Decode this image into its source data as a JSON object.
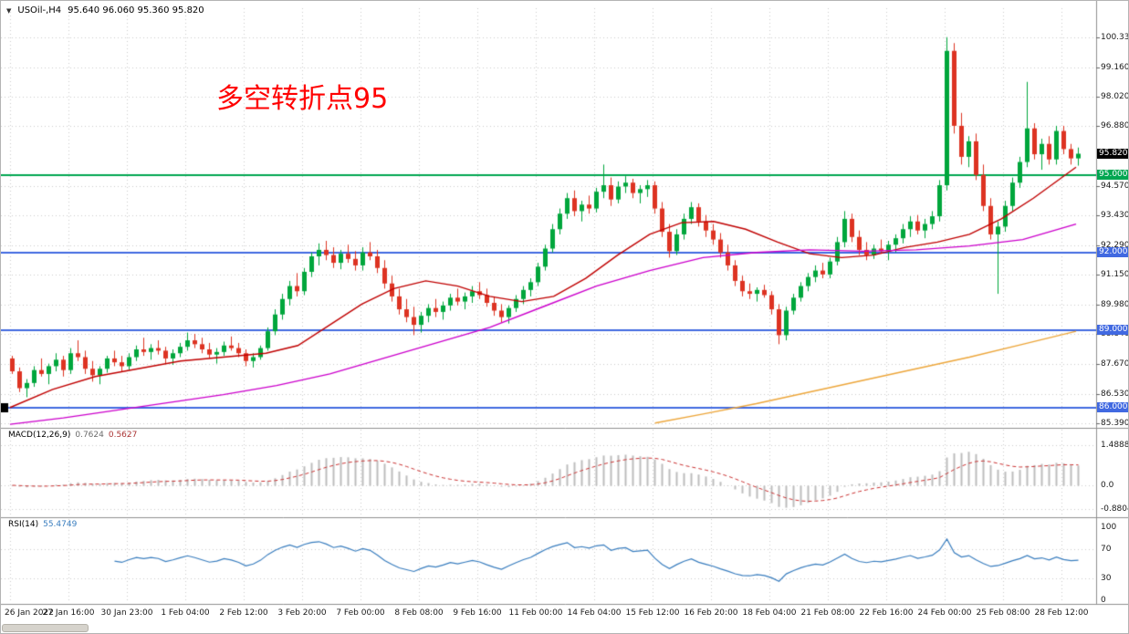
{
  "window": {
    "dropdown_icon": "▼",
    "symbol_period": "USOil-,H4",
    "ohlc": "95.640 96.060 95.360 95.820"
  },
  "annotation": {
    "text": "多空转折点95",
    "color": "#ff0000"
  },
  "chart_data": {
    "type": "candlestick",
    "symbol": "USOil-",
    "timeframe": "H4",
    "ylim": [
      85.25,
      101.45
    ],
    "price_ticks": [
      {
        "price": 100.33,
        "label": "100.330"
      },
      {
        "price": 99.16,
        "label": "99.160"
      },
      {
        "price": 98.02,
        "label": "98.020"
      },
      {
        "price": 96.88,
        "label": "96.880"
      },
      {
        "price": 94.57,
        "label": "94.570"
      },
      {
        "price": 93.43,
        "label": "93.430"
      },
      {
        "price": 92.29,
        "label": "92.290"
      },
      {
        "price": 91.15,
        "label": "91.150"
      },
      {
        "price": 89.98,
        "label": "89.980"
      },
      {
        "price": 88.84,
        "label": "88.840"
      },
      {
        "price": 87.67,
        "label": "87.670"
      },
      {
        "price": 86.53,
        "label": "86.530"
      },
      {
        "price": 85.39,
        "label": "85.390"
      }
    ],
    "x_labels": [
      "26 Jan 2022",
      "27 Jan 16:00",
      "30 Jan 23:00",
      "1 Feb 04:00",
      "2 Feb 12:00",
      "3 Feb 20:00",
      "7 Feb 00:00",
      "8 Feb 08:00",
      "9 Feb 16:00",
      "11 Feb 00:00",
      "14 Feb 04:00",
      "15 Feb 12:00",
      "16 Feb 20:00",
      "18 Feb 04:00",
      "21 Feb 08:00",
      "22 Feb 16:00",
      "24 Feb 00:00",
      "25 Feb 08:00",
      "28 Feb 12:00"
    ],
    "candles": [
      [
        87.9,
        88.0,
        87.3,
        87.4
      ],
      [
        87.4,
        87.55,
        86.6,
        86.75
      ],
      [
        86.75,
        87.1,
        86.4,
        86.95
      ],
      [
        86.95,
        87.6,
        86.8,
        87.45
      ],
      [
        87.45,
        87.9,
        87.2,
        87.3
      ],
      [
        87.3,
        87.7,
        86.9,
        87.6
      ],
      [
        87.6,
        88.1,
        87.4,
        87.85
      ],
      [
        87.85,
        88.0,
        87.2,
        87.45
      ],
      [
        87.45,
        88.3,
        87.3,
        88.1
      ],
      [
        88.1,
        88.6,
        87.8,
        87.95
      ],
      [
        87.95,
        88.2,
        87.3,
        87.5
      ],
      [
        87.5,
        87.8,
        87.0,
        87.25
      ],
      [
        87.25,
        87.6,
        86.9,
        87.5
      ],
      [
        87.5,
        88.0,
        87.35,
        87.9
      ],
      [
        87.9,
        88.2,
        87.6,
        87.75
      ],
      [
        87.75,
        88.0,
        87.4,
        87.6
      ],
      [
        87.6,
        88.1,
        87.45,
        87.95
      ],
      [
        87.95,
        88.4,
        87.8,
        88.25
      ],
      [
        88.25,
        88.7,
        88.0,
        88.15
      ],
      [
        88.15,
        88.45,
        87.85,
        88.3
      ],
      [
        88.3,
        88.6,
        88.05,
        88.2
      ],
      [
        88.2,
        88.35,
        87.7,
        87.9
      ],
      [
        87.9,
        88.25,
        87.65,
        88.1
      ],
      [
        88.1,
        88.5,
        87.95,
        88.35
      ],
      [
        88.35,
        88.9,
        88.2,
        88.6
      ],
      [
        88.6,
        88.85,
        88.3,
        88.45
      ],
      [
        88.45,
        88.7,
        88.1,
        88.25
      ],
      [
        88.25,
        88.5,
        87.9,
        88.05
      ],
      [
        88.05,
        88.3,
        87.7,
        88.15
      ],
      [
        88.15,
        88.55,
        88.0,
        88.4
      ],
      [
        88.4,
        88.75,
        88.2,
        88.3
      ],
      [
        88.3,
        88.5,
        87.95,
        88.1
      ],
      [
        88.1,
        88.25,
        87.6,
        87.8
      ],
      [
        87.8,
        88.1,
        87.55,
        87.95
      ],
      [
        87.95,
        88.4,
        87.85,
        88.3
      ],
      [
        88.3,
        89.1,
        88.2,
        88.95
      ],
      [
        88.95,
        89.8,
        88.8,
        89.6
      ],
      [
        89.6,
        90.4,
        89.4,
        90.2
      ],
      [
        90.2,
        90.9,
        89.95,
        90.7
      ],
      [
        90.7,
        91.2,
        90.3,
        90.5
      ],
      [
        90.5,
        91.4,
        90.35,
        91.25
      ],
      [
        91.25,
        92.0,
        91.05,
        91.85
      ],
      [
        91.85,
        92.35,
        91.5,
        92.1
      ],
      [
        92.1,
        92.45,
        91.7,
        91.9
      ],
      [
        91.9,
        92.2,
        91.4,
        91.6
      ],
      [
        91.6,
        92.1,
        91.35,
        91.95
      ],
      [
        91.95,
        92.3,
        91.6,
        91.75
      ],
      [
        91.75,
        92.05,
        91.3,
        91.5
      ],
      [
        91.5,
        92.2,
        91.3,
        92.0
      ],
      [
        92.0,
        92.4,
        91.7,
        91.85
      ],
      [
        91.85,
        92.1,
        91.2,
        91.4
      ],
      [
        91.4,
        91.7,
        90.6,
        90.8
      ],
      [
        90.8,
        91.1,
        90.1,
        90.3
      ],
      [
        90.3,
        90.6,
        89.6,
        89.8
      ],
      [
        89.8,
        90.2,
        89.3,
        89.5
      ],
      [
        89.5,
        89.9,
        88.8,
        89.2
      ],
      [
        89.2,
        89.7,
        88.9,
        89.55
      ],
      [
        89.55,
        90.0,
        89.3,
        89.85
      ],
      [
        89.85,
        90.2,
        89.5,
        89.7
      ],
      [
        89.7,
        90.1,
        89.4,
        89.95
      ],
      [
        89.95,
        90.4,
        89.75,
        90.25
      ],
      [
        90.25,
        90.6,
        89.95,
        90.1
      ],
      [
        90.1,
        90.45,
        89.8,
        90.3
      ],
      [
        90.3,
        90.7,
        90.05,
        90.5
      ],
      [
        90.5,
        90.85,
        90.2,
        90.35
      ],
      [
        90.35,
        90.6,
        89.9,
        90.05
      ],
      [
        90.05,
        90.3,
        89.55,
        89.75
      ],
      [
        89.75,
        90.0,
        89.3,
        89.5
      ],
      [
        89.5,
        89.95,
        89.25,
        89.85
      ],
      [
        89.85,
        90.35,
        89.7,
        90.2
      ],
      [
        90.2,
        90.7,
        90.0,
        90.55
      ],
      [
        90.55,
        91.0,
        90.3,
        90.85
      ],
      [
        90.85,
        91.6,
        90.7,
        91.45
      ],
      [
        91.45,
        92.3,
        91.3,
        92.15
      ],
      [
        92.15,
        93.1,
        92.0,
        92.9
      ],
      [
        92.9,
        93.7,
        92.7,
        93.5
      ],
      [
        93.5,
        94.3,
        93.3,
        94.1
      ],
      [
        94.1,
        94.4,
        93.4,
        93.6
      ],
      [
        93.6,
        94.0,
        93.2,
        93.85
      ],
      [
        93.85,
        94.2,
        93.5,
        93.7
      ],
      [
        93.7,
        94.5,
        93.55,
        94.35
      ],
      [
        94.35,
        95.4,
        94.1,
        94.6
      ],
      [
        94.6,
        94.9,
        93.8,
        94.05
      ],
      [
        94.05,
        94.75,
        93.9,
        94.55
      ],
      [
        94.55,
        94.95,
        94.3,
        94.7
      ],
      [
        94.7,
        94.85,
        94.1,
        94.3
      ],
      [
        94.3,
        94.6,
        93.9,
        94.45
      ],
      [
        94.45,
        94.8,
        94.15,
        94.6
      ],
      [
        94.6,
        94.75,
        93.5,
        93.7
      ],
      [
        93.7,
        93.95,
        92.6,
        92.8
      ],
      [
        92.8,
        93.1,
        91.8,
        92.05
      ],
      [
        92.05,
        92.9,
        91.9,
        92.7
      ],
      [
        92.7,
        93.5,
        92.5,
        93.3
      ],
      [
        93.3,
        93.95,
        93.1,
        93.75
      ],
      [
        93.75,
        93.9,
        93.0,
        93.2
      ],
      [
        93.2,
        93.45,
        92.6,
        92.85
      ],
      [
        92.85,
        93.1,
        92.3,
        92.5
      ],
      [
        92.5,
        92.75,
        91.8,
        92.0
      ],
      [
        92.0,
        92.3,
        91.3,
        91.5
      ],
      [
        91.5,
        91.7,
        90.7,
        90.9
      ],
      [
        90.9,
        91.1,
        90.3,
        90.5
      ],
      [
        90.5,
        90.8,
        90.2,
        90.4
      ],
      [
        90.4,
        90.65,
        90.1,
        90.55
      ],
      [
        90.55,
        90.75,
        90.25,
        90.35
      ],
      [
        90.35,
        90.5,
        89.6,
        89.8
      ],
      [
        89.8,
        90.0,
        88.45,
        88.8
      ],
      [
        88.8,
        89.9,
        88.6,
        89.75
      ],
      [
        89.75,
        90.4,
        89.6,
        90.25
      ],
      [
        90.25,
        90.85,
        90.1,
        90.7
      ],
      [
        90.7,
        91.2,
        90.5,
        91.05
      ],
      [
        91.05,
        91.5,
        90.85,
        91.3
      ],
      [
        91.3,
        91.6,
        91.0,
        91.15
      ],
      [
        91.15,
        91.8,
        91.0,
        91.65
      ],
      [
        91.65,
        92.6,
        91.5,
        92.4
      ],
      [
        92.4,
        93.6,
        92.2,
        93.3
      ],
      [
        93.3,
        93.5,
        92.4,
        92.6
      ],
      [
        92.6,
        92.85,
        91.9,
        92.1
      ],
      [
        92.1,
        92.4,
        91.7,
        91.9
      ],
      [
        91.9,
        92.3,
        91.75,
        92.15
      ],
      [
        92.15,
        92.5,
        91.95,
        92.05
      ],
      [
        92.05,
        92.45,
        91.7,
        92.3
      ],
      [
        92.3,
        92.7,
        92.0,
        92.55
      ],
      [
        92.55,
        93.1,
        92.35,
        92.9
      ],
      [
        92.9,
        93.4,
        92.6,
        93.2
      ],
      [
        93.2,
        93.45,
        92.7,
        92.85
      ],
      [
        92.85,
        93.3,
        92.55,
        93.1
      ],
      [
        93.1,
        93.6,
        92.9,
        93.4
      ],
      [
        93.4,
        94.8,
        93.2,
        94.6
      ],
      [
        94.6,
        100.33,
        94.4,
        99.8
      ],
      [
        99.8,
        100.1,
        96.6,
        96.9
      ],
      [
        96.9,
        97.4,
        95.4,
        95.7
      ],
      [
        95.7,
        96.5,
        95.3,
        96.3
      ],
      [
        96.3,
        96.6,
        94.8,
        95.0
      ],
      [
        95.0,
        95.4,
        93.6,
        93.8
      ],
      [
        93.8,
        94.1,
        92.5,
        92.7
      ],
      [
        92.7,
        93.2,
        90.4,
        93.0
      ],
      [
        93.0,
        94.0,
        92.8,
        93.8
      ],
      [
        93.8,
        94.9,
        93.6,
        94.7
      ],
      [
        94.7,
        95.7,
        94.5,
        95.5
      ],
      [
        95.5,
        98.6,
        95.3,
        96.8
      ],
      [
        96.8,
        97.0,
        95.6,
        95.8
      ],
      [
        95.8,
        96.4,
        95.2,
        96.2
      ],
      [
        96.2,
        96.5,
        95.4,
        95.6
      ],
      [
        95.6,
        96.9,
        95.4,
        96.7
      ],
      [
        96.7,
        96.9,
        95.8,
        96.0
      ],
      [
        96.0,
        96.2,
        95.4,
        95.64
      ],
      [
        95.64,
        96.06,
        95.36,
        95.82
      ]
    ],
    "levels": [
      {
        "price": 95.0,
        "label": "95.000",
        "color": "#00a651"
      },
      {
        "price": 92.0,
        "label": "92.000",
        "color": "#4169e1"
      },
      {
        "price": 89.0,
        "label": "89.000",
        "color": "#4169e1"
      },
      {
        "price": 86.0,
        "label": "86.000",
        "color": "#4169e1"
      }
    ],
    "current_price": {
      "price": 95.82,
      "label": "95.820",
      "bg": "#000000"
    },
    "moving_averages": [
      {
        "name": "ma-fast-red",
        "color": "#c00000",
        "points": [
          [
            0,
            86.0
          ],
          [
            0.04,
            86.7
          ],
          [
            0.08,
            87.2
          ],
          [
            0.12,
            87.5
          ],
          [
            0.16,
            87.8
          ],
          [
            0.2,
            87.95
          ],
          [
            0.24,
            88.1
          ],
          [
            0.27,
            88.4
          ],
          [
            0.3,
            89.2
          ],
          [
            0.33,
            90.0
          ],
          [
            0.36,
            90.6
          ],
          [
            0.39,
            90.9
          ],
          [
            0.42,
            90.7
          ],
          [
            0.45,
            90.3
          ],
          [
            0.48,
            90.1
          ],
          [
            0.51,
            90.3
          ],
          [
            0.54,
            91.0
          ],
          [
            0.57,
            91.9
          ],
          [
            0.6,
            92.7
          ],
          [
            0.63,
            93.15
          ],
          [
            0.66,
            93.2
          ],
          [
            0.69,
            92.9
          ],
          [
            0.72,
            92.4
          ],
          [
            0.75,
            91.95
          ],
          [
            0.78,
            91.8
          ],
          [
            0.81,
            91.9
          ],
          [
            0.84,
            92.2
          ],
          [
            0.87,
            92.4
          ],
          [
            0.9,
            92.7
          ],
          [
            0.93,
            93.3
          ],
          [
            0.96,
            94.1
          ],
          [
            0.98,
            94.7
          ],
          [
            1,
            95.3
          ]
        ]
      },
      {
        "name": "ma-mid-magenta",
        "color": "#cc00cc",
        "points": [
          [
            0,
            85.35
          ],
          [
            0.05,
            85.6
          ],
          [
            0.1,
            85.9
          ],
          [
            0.15,
            86.2
          ],
          [
            0.2,
            86.5
          ],
          [
            0.25,
            86.85
          ],
          [
            0.3,
            87.3
          ],
          [
            0.35,
            87.9
          ],
          [
            0.4,
            88.5
          ],
          [
            0.45,
            89.1
          ],
          [
            0.5,
            89.9
          ],
          [
            0.55,
            90.7
          ],
          [
            0.6,
            91.3
          ],
          [
            0.65,
            91.8
          ],
          [
            0.7,
            92.0
          ],
          [
            0.75,
            92.1
          ],
          [
            0.8,
            92.05
          ],
          [
            0.85,
            92.1
          ],
          [
            0.9,
            92.25
          ],
          [
            0.95,
            92.5
          ],
          [
            1,
            93.1
          ]
        ]
      },
      {
        "name": "ma-slow-orange",
        "color": "#eda63a",
        "points": [
          [
            0.605,
            85.4
          ],
          [
            0.65,
            85.75
          ],
          [
            0.7,
            86.15
          ],
          [
            0.75,
            86.6
          ],
          [
            0.8,
            87.05
          ],
          [
            0.85,
            87.5
          ],
          [
            0.9,
            87.95
          ],
          [
            0.95,
            88.45
          ],
          [
            1,
            88.95
          ]
        ]
      }
    ],
    "indicators": {
      "macd": {
        "label": "MACD(12,26,9)",
        "main_text": "0.7624",
        "signal_text": "0.5627",
        "params": [
          12,
          26,
          9
        ],
        "scale": [
          {
            "v": 1.4888,
            "label": "1.4888"
          },
          {
            "v": 0,
            "label": "0.0"
          },
          {
            "v": -0.8804,
            "label": "-0.8804"
          }
        ],
        "hist_color": "#bdbdbd",
        "signal_color": "#cc3333"
      },
      "rsi": {
        "label": "RSI(14)",
        "value_text": "55.4749",
        "period": 14,
        "scale": [
          {
            "v": 100,
            "label": "100"
          },
          {
            "v": 70,
            "label": "70"
          },
          {
            "v": 30,
            "label": "30"
          },
          {
            "v": 0,
            "label": "0"
          }
        ],
        "levels": [
          70,
          30
        ],
        "line_color": "#3a7ebf"
      }
    },
    "colors": {
      "bull": "#00a63c",
      "bear": "#dd3322",
      "grid": "#cccccc",
      "separator": "#909090",
      "axis_text": "#1a1a1a"
    }
  }
}
